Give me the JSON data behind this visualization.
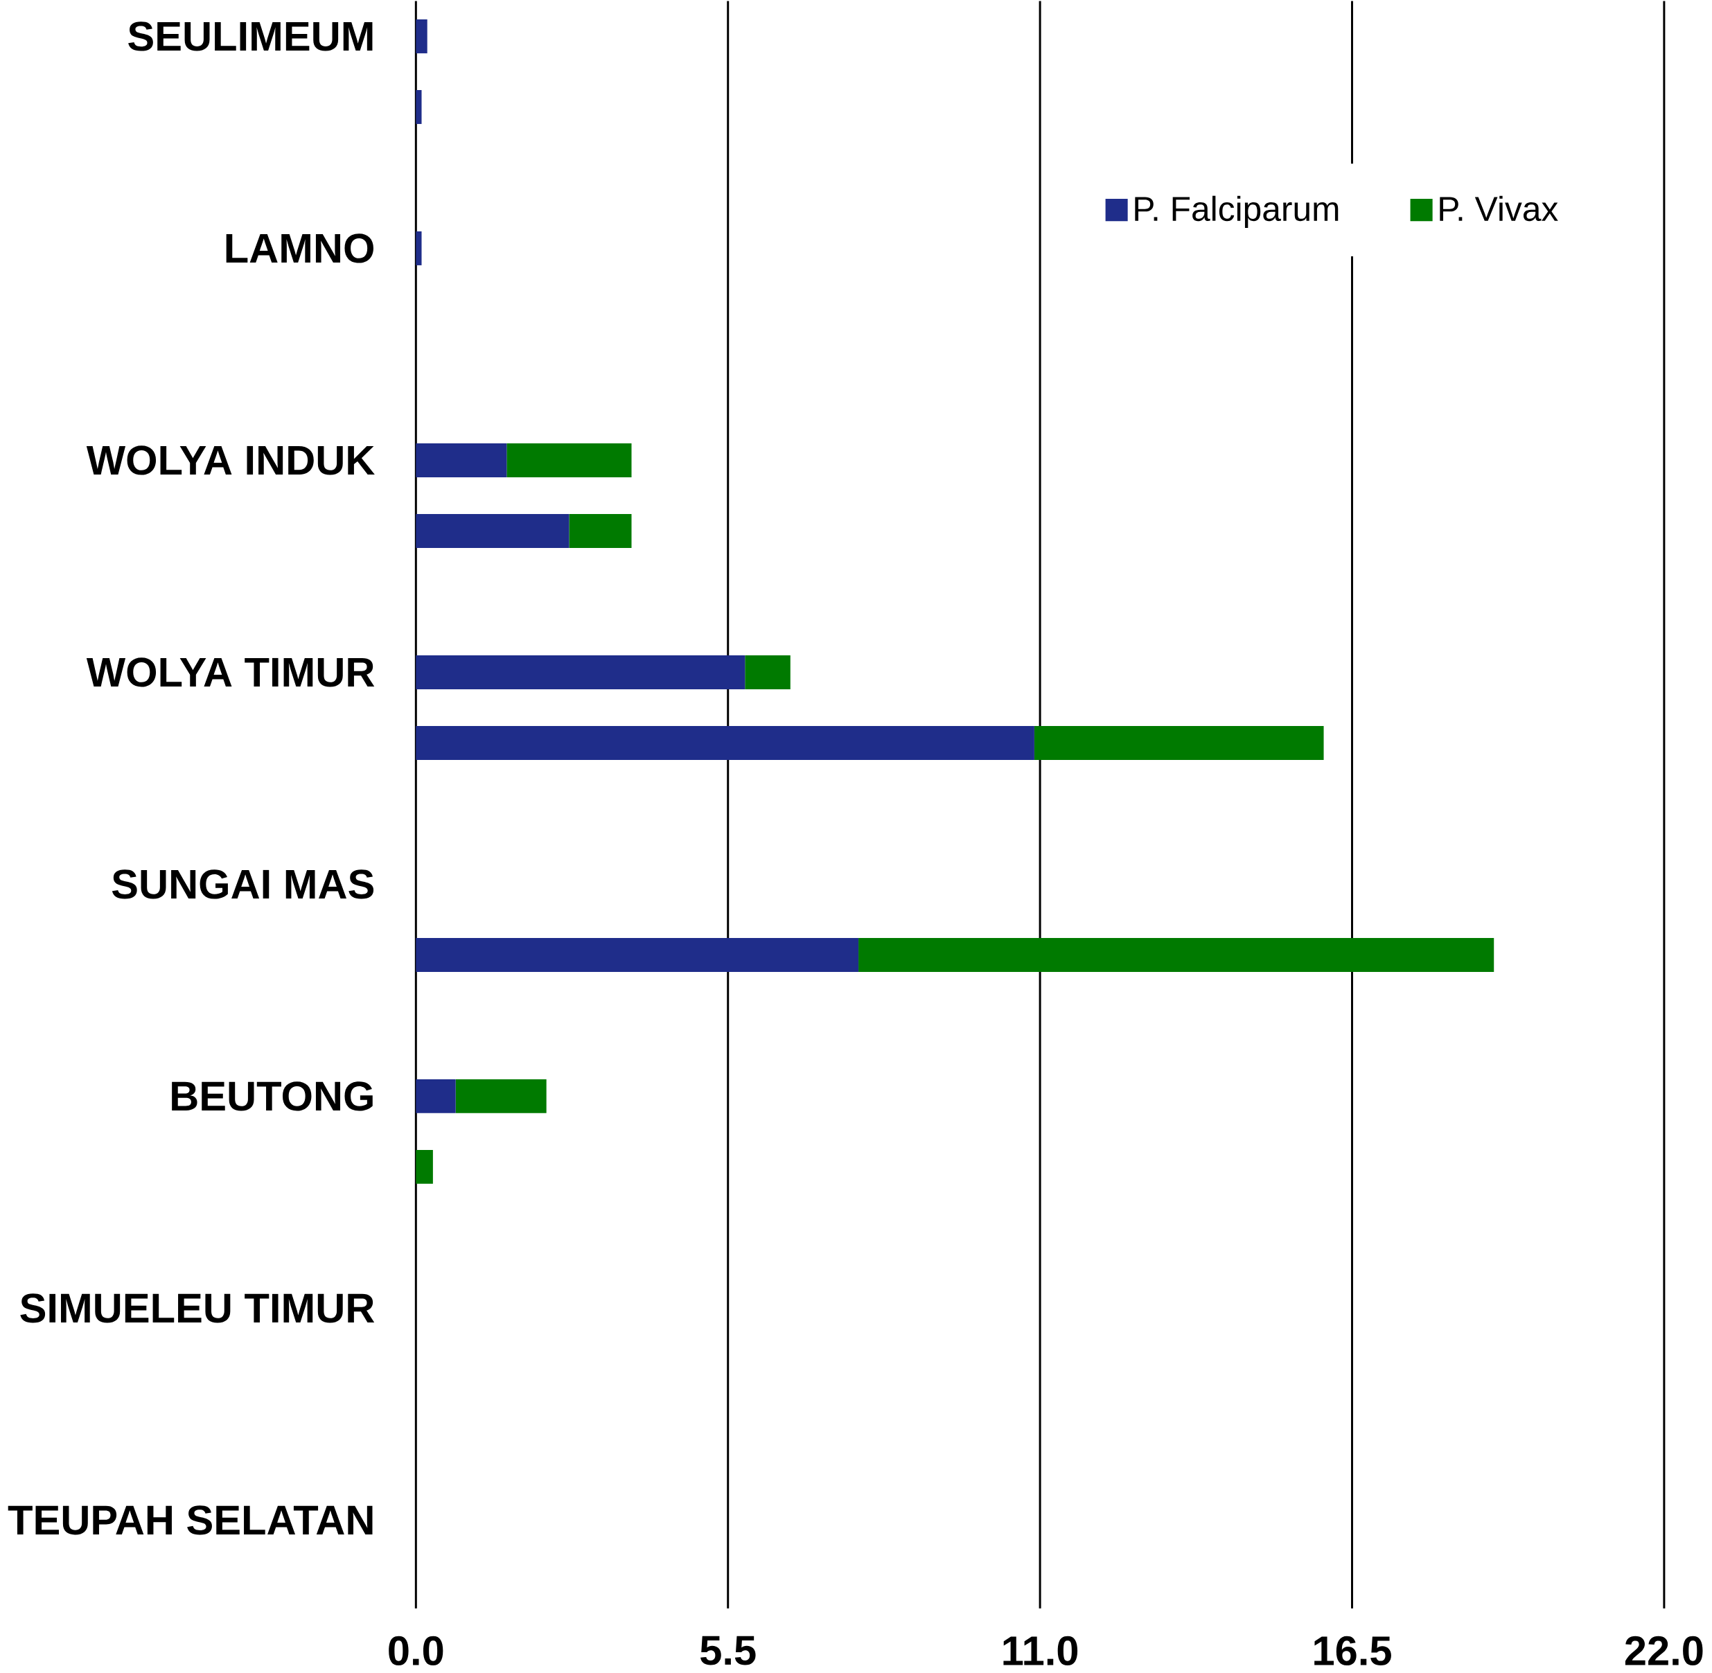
{
  "chart_data": {
    "type": "bar",
    "orientation": "horizontal",
    "stacked": true,
    "categories": [
      "SEULIMEUM",
      null,
      "LAMNO",
      null,
      "WOLYA INDUK",
      null,
      "WOLYA TIMUR",
      null,
      "SUNGAI MAS",
      null,
      "BEUTONG",
      null,
      "SIMUELEU TIMUR",
      null,
      "TEUPAH SELATAN",
      null
    ],
    "series": [
      {
        "name": "P. Falciparum",
        "color": "#1f2d8a",
        "values": [
          0.2,
          0.1,
          0.1,
          null,
          1.6,
          2.7,
          5.8,
          10.9,
          null,
          7.8,
          0.7,
          null,
          null,
          null,
          null,
          null
        ]
      },
      {
        "name": "P. Vivax",
        "color": "#007a00",
        "values": [
          null,
          null,
          null,
          null,
          2.2,
          1.1,
          0.8,
          5.1,
          null,
          11.2,
          1.6,
          0.3,
          null,
          null,
          null,
          null
        ]
      }
    ],
    "xlim": [
      0,
      22
    ],
    "xticks": [
      {
        "value": 0,
        "label": "0.0"
      },
      5.5,
      {
        "value": 11,
        "label": "11.0"
      },
      16.5,
      {
        "value": 22,
        "label": "22.0"
      }
    ],
    "grid": "x",
    "legend": "top right"
  }
}
